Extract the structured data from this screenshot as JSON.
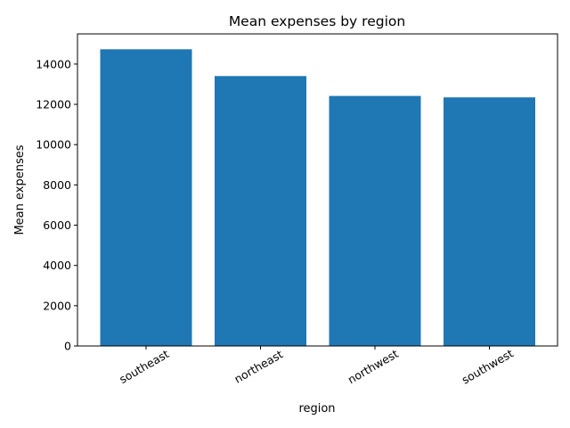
{
  "chart_data": {
    "type": "bar",
    "title": "Mean expenses by region",
    "xlabel": "region",
    "ylabel": "Mean expenses",
    "categories": [
      "southeast",
      "northeast",
      "northwest",
      "southwest"
    ],
    "values": [
      14735,
      13406,
      12418,
      12347
    ],
    "ylim": [
      0,
      15500
    ],
    "yticks": [
      0,
      2000,
      4000,
      6000,
      8000,
      10000,
      12000,
      14000
    ],
    "bar_color": "#1f77b4",
    "grid": false,
    "legend": "none"
  }
}
